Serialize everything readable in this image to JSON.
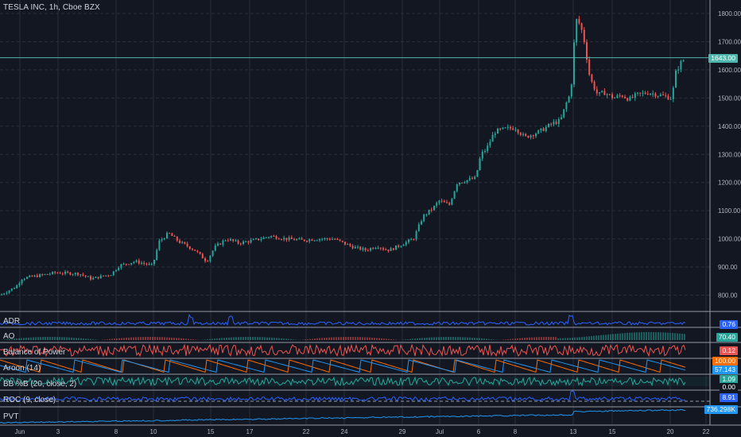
{
  "header": {
    "title": "TESLA INC, 1h, Cboe BZX"
  },
  "colors": {
    "background": "#131722",
    "grid": "#2a2e39",
    "text": "#b2b5be",
    "up": "#26a69a",
    "down": "#ef5350",
    "blue": "#2962ff",
    "current_line": "#4db6ac",
    "separator": "#9598a1"
  },
  "chart_data": {
    "type": "candlestick",
    "title": "TESLA INC, 1h, Cboe BZX",
    "y_ticks": [
      "1800.00",
      "1700.00",
      "1600.00",
      "1500.00",
      "1400.00",
      "1300.00",
      "1200.00",
      "1100.00",
      "1000.00",
      "900.00",
      "800.00"
    ],
    "ylim": [
      770,
      1820
    ],
    "x_ticks": [
      "Jun",
      "3",
      "8",
      "10",
      "15",
      "17",
      "22",
      "24",
      "29",
      "Jul",
      "6",
      "8",
      "13",
      "15",
      "20",
      "22"
    ],
    "current_price": {
      "label": "1643.00",
      "value": 1643
    },
    "price_path": [
      [
        0,
        800
      ],
      [
        20,
        830
      ],
      [
        28,
        860
      ],
      [
        50,
        870
      ],
      [
        70,
        880
      ],
      [
        100,
        876
      ],
      [
        115,
        858
      ],
      [
        140,
        875
      ],
      [
        150,
        905
      ],
      [
        170,
        920
      ],
      [
        192,
        905
      ],
      [
        200,
        990
      ],
      [
        212,
        1020
      ],
      [
        225,
        990
      ],
      [
        245,
        960
      ],
      [
        260,
        920
      ],
      [
        270,
        970
      ],
      [
        285,
        1000
      ],
      [
        300,
        985
      ],
      [
        320,
        995
      ],
      [
        340,
        1010
      ],
      [
        360,
        1000
      ],
      [
        380,
        995
      ],
      [
        400,
        1000
      ],
      [
        420,
        1000
      ],
      [
        432,
        985
      ],
      [
        445,
        970
      ],
      [
        460,
        960
      ],
      [
        475,
        975
      ],
      [
        482,
        965
      ],
      [
        490,
        960
      ],
      [
        505,
        980
      ],
      [
        520,
        1000
      ],
      [
        532,
        1080
      ],
      [
        545,
        1110
      ],
      [
        552,
        1135
      ],
      [
        565,
        1120
      ],
      [
        575,
        1200
      ],
      [
        590,
        1210
      ],
      [
        598,
        1215
      ],
      [
        605,
        1300
      ],
      [
        612,
        1320
      ],
      [
        622,
        1380
      ],
      [
        635,
        1390
      ],
      [
        648,
        1395
      ],
      [
        660,
        1360
      ],
      [
        668,
        1370
      ],
      [
        678,
        1380
      ],
      [
        695,
        1410
      ],
      [
        705,
        1420
      ],
      [
        712,
        1480
      ],
      [
        718,
        1520
      ],
      [
        724,
        1780
      ],
      [
        730,
        1760
      ],
      [
        735,
        1700
      ],
      [
        742,
        1570
      ],
      [
        752,
        1510
      ],
      [
        760,
        1520
      ],
      [
        772,
        1500
      ],
      [
        782,
        1510
      ],
      [
        792,
        1495
      ],
      [
        800,
        1510
      ],
      [
        815,
        1520
      ],
      [
        830,
        1510
      ],
      [
        845,
        1500
      ],
      [
        850,
        1590
      ],
      [
        855,
        1620
      ],
      [
        862,
        1643
      ]
    ],
    "indicators": [
      {
        "name": "ADR",
        "value": "0.76",
        "color": "#2962ff"
      },
      {
        "name": "AO",
        "value": "70.40",
        "color": "#26a69a"
      },
      {
        "name": "Balance of Power",
        "value": "0.12",
        "color": "#ef5350"
      },
      {
        "name": "Aroon (14)",
        "value_up": "100.00",
        "value_down": "57.143",
        "color_up": "#ff6d00",
        "color_down": "#2196f3"
      },
      {
        "name": "BB %B (20, close, 2)",
        "value": "1.09",
        "value2": "0.00",
        "color": "#26a69a"
      },
      {
        "name": "ROC (9, close)",
        "value": "8.91",
        "color": "#2962ff"
      },
      {
        "name": "PVT",
        "value": "736.298K",
        "color": "#2196f3"
      }
    ]
  }
}
